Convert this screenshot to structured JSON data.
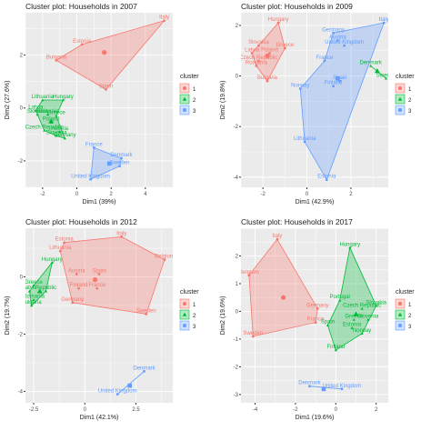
{
  "colors": {
    "1": "#F8766D",
    "2": "#00BA38",
    "3": "#619CFF",
    "panel_bg": "#EBEBEB",
    "grid": "#FFFFFF"
  },
  "chart_data": [
    {
      "type": "scatter",
      "title": "Cluster plot: Households in 2007",
      "xlabel": "Dim1 (39%)",
      "ylabel": "Dim2 (27.6%)",
      "xlim": [
        -3.0,
        5.6
      ],
      "ylim": [
        -3.0,
        3.6
      ],
      "xticks": [
        -2,
        0,
        2,
        4
      ],
      "yticks": [
        -2,
        0,
        2
      ],
      "legend": {
        "title": "cluster",
        "entries": [
          "1",
          "2",
          "3"
        ],
        "position": "right"
      },
      "points": [
        {
          "label": "Italy",
          "x": 5.1,
          "y": 3.3,
          "cluster": "1"
        },
        {
          "label": "Estonia",
          "x": 0.3,
          "y": 2.4,
          "cluster": "1"
        },
        {
          "label": "Bulgaria",
          "x": -1.2,
          "y": 1.8,
          "cluster": "1"
        },
        {
          "label": "Spain",
          "x": 1.7,
          "y": 0.7,
          "cluster": "1"
        },
        {
          "label": "Lithuania",
          "x": -2.0,
          "y": 0.3,
          "cluster": "2"
        },
        {
          "label": "Hungary",
          "x": -0.8,
          "y": 0.3,
          "cluster": "2"
        },
        {
          "label": "Latvia",
          "x": -2.4,
          "y": -0.1,
          "cluster": "2"
        },
        {
          "label": "Slovakia",
          "x": -2.3,
          "y": -0.25,
          "cluster": "2"
        },
        {
          "label": "Romania",
          "x": -1.7,
          "y": -0.25,
          "cluster": "2"
        },
        {
          "label": "Greece",
          "x": -1.2,
          "y": -0.3,
          "cluster": "2"
        },
        {
          "label": "Poland",
          "x": -1.5,
          "y": -0.55,
          "cluster": "2"
        },
        {
          "label": "Czech Republic",
          "x": -1.9,
          "y": -0.85,
          "cluster": "2"
        },
        {
          "label": "Austria",
          "x": -1.0,
          "y": -0.9,
          "cluster": "2"
        },
        {
          "label": "Slovenia",
          "x": -1.2,
          "y": -1.05,
          "cluster": "2"
        },
        {
          "label": "Germany",
          "x": -0.7,
          "y": -1.15,
          "cluster": "2"
        },
        {
          "label": "France",
          "x": 1.0,
          "y": -1.5,
          "cluster": "3"
        },
        {
          "label": "Denmark",
          "x": 2.6,
          "y": -1.9,
          "cluster": "3"
        },
        {
          "label": "Sweden",
          "x": 2.5,
          "y": -2.2,
          "cluster": "3"
        },
        {
          "label": "United Kingdom",
          "x": 0.8,
          "y": -2.7,
          "cluster": "3"
        }
      ],
      "centroids": [
        {
          "cluster": "1",
          "x": 1.6,
          "y": 2.1
        },
        {
          "cluster": "2",
          "x": -1.5,
          "y": -0.5
        },
        {
          "cluster": "3",
          "x": 1.9,
          "y": -2.1
        }
      ],
      "hulls": {
        "1": [
          "Bulgaria",
          "Estonia",
          "Italy",
          "Spain"
        ],
        "2": [
          "Latvia",
          "Lithuania",
          "Hungary",
          "Greece",
          "Germany",
          "Slovenia",
          "Czech Republic"
        ],
        "3": [
          "France",
          "Denmark",
          "Sweden",
          "United Kingdom"
        ]
      }
    },
    {
      "type": "scatter",
      "title": "Cluster plot: Households in 2009",
      "xlabel": "Dim1 (42.9%)",
      "ylabel": "Dim2 (19.8%)",
      "xlim": [
        -3.0,
        3.7
      ],
      "ylim": [
        -4.4,
        2.5
      ],
      "xticks": [
        -2,
        0,
        2
      ],
      "yticks": [
        -4,
        -2,
        0,
        2
      ],
      "legend": {
        "title": "cluster",
        "entries": [
          "1",
          "2",
          "3"
        ],
        "position": "right"
      },
      "points": [
        {
          "label": "Hungary",
          "x": -1.3,
          "y": 2.1,
          "cluster": "1"
        },
        {
          "label": "Slovakia",
          "x": -2.2,
          "y": 1.2,
          "cluster": "1"
        },
        {
          "label": "Greece",
          "x": -1.0,
          "y": 1.1,
          "cluster": "1"
        },
        {
          "label": "Latvia",
          "x": -2.5,
          "y": 0.9,
          "cluster": "1"
        },
        {
          "label": "Poland",
          "x": -1.7,
          "y": 0.9,
          "cluster": "1"
        },
        {
          "label": "Czech Republic",
          "x": -2.2,
          "y": 0.6,
          "cluster": "1"
        },
        {
          "label": "Romania",
          "x": -2.3,
          "y": 0.4,
          "cluster": "1"
        },
        {
          "label": "Bulgaria",
          "x": -1.8,
          "y": -0.2,
          "cluster": "1"
        },
        {
          "label": "Italy",
          "x": 3.5,
          "y": 2.1,
          "cluster": "3"
        },
        {
          "label": "Germany",
          "x": 1.2,
          "y": 1.7,
          "cluster": "3"
        },
        {
          "label": "Austria",
          "x": 1.4,
          "y": 1.4,
          "cluster": "3"
        },
        {
          "label": "United Kingdom",
          "x": 1.7,
          "y": 1.2,
          "cluster": "3"
        },
        {
          "label": "France",
          "x": 0.8,
          "y": 0.6,
          "cluster": "3"
        },
        {
          "label": "Spain",
          "x": 1.5,
          "y": -0.2,
          "cluster": "3"
        },
        {
          "label": "Finland",
          "x": 1.2,
          "y": -0.4,
          "cluster": "3"
        },
        {
          "label": "Norway",
          "x": -0.3,
          "y": -0.5,
          "cluster": "3"
        },
        {
          "label": "Lithuania",
          "x": -0.1,
          "y": -2.6,
          "cluster": "3"
        },
        {
          "label": "Estonia",
          "x": 0.9,
          "y": -4.1,
          "cluster": "3"
        },
        {
          "label": "Denmark",
          "x": 2.9,
          "y": 0.4,
          "cluster": "2"
        },
        {
          "label": "Sweden",
          "x": 3.6,
          "y": -0.1,
          "cluster": "2"
        }
      ],
      "centroids": [
        {
          "cluster": "1",
          "x": -1.8,
          "y": 0.8
        },
        {
          "cluster": "2",
          "x": 3.2,
          "y": 0.2
        },
        {
          "cluster": "3",
          "x": 1.4,
          "y": -0.1
        }
      ],
      "hulls": {
        "1": [
          "Hungary",
          "Greece",
          "Bulgaria",
          "Romania",
          "Latvia",
          "Slovakia"
        ],
        "2": [
          "Denmark",
          "Sweden"
        ],
        "3": [
          "Germany",
          "Italy",
          "Estonia",
          "Lithuania",
          "Norway",
          "France"
        ]
      }
    },
    {
      "type": "scatter",
      "title": "Cluster plot: Households in 2012",
      "xlabel": "Dim1 (42.1%)",
      "ylabel": "Dim2 (19.7%)",
      "xlim": [
        -2.9,
        4.3
      ],
      "ylim": [
        -4.4,
        1.7
      ],
      "xticks": [
        -2.5,
        0,
        2.5
      ],
      "yticks": [
        -4,
        -2,
        0
      ],
      "legend": {
        "title": "cluster",
        "entries": [
          "1",
          "2",
          "3"
        ],
        "position": "right"
      },
      "points": [
        {
          "label": "Italy",
          "x": 1.8,
          "y": 1.4,
          "cluster": "1"
        },
        {
          "label": "Estonia",
          "x": -1.0,
          "y": 1.2,
          "cluster": "1"
        },
        {
          "label": "Lithuania",
          "x": -1.2,
          "y": 0.9,
          "cluster": "1"
        },
        {
          "label": "Belgium",
          "x": 3.9,
          "y": 0.6,
          "cluster": "1"
        },
        {
          "label": "Austria",
          "x": -0.4,
          "y": 0.1,
          "cluster": "1"
        },
        {
          "label": "Spain",
          "x": 0.7,
          "y": 0.1,
          "cluster": "1"
        },
        {
          "label": "Finland",
          "x": -0.3,
          "y": -0.4,
          "cluster": "1"
        },
        {
          "label": "France",
          "x": 0.6,
          "y": -0.4,
          "cluster": "1"
        },
        {
          "label": "Germany",
          "x": -0.6,
          "y": -0.9,
          "cluster": "1"
        },
        {
          "label": "Sweden",
          "x": 3.0,
          "y": -1.3,
          "cluster": "1"
        },
        {
          "label": "Hungary",
          "x": -1.6,
          "y": 0.5,
          "cluster": "2"
        },
        {
          "label": "Greece",
          "x": -2.5,
          "y": -0.3,
          "cluster": "2"
        },
        {
          "label": "Latvia",
          "x": -2.7,
          "y": -0.5,
          "cluster": "2"
        },
        {
          "label": "Republic",
          "x": -1.9,
          "y": -0.5,
          "cluster": "2"
        },
        {
          "label": "Romania",
          "x": -2.5,
          "y": -0.8,
          "cluster": "2"
        },
        {
          "label": "Bulgaria",
          "x": -2.6,
          "y": -1.0,
          "cluster": "2"
        },
        {
          "label": "Denmark",
          "x": 2.9,
          "y": -3.3,
          "cluster": "3"
        },
        {
          "label": "United Kingdom",
          "x": 1.6,
          "y": -4.1,
          "cluster": "3"
        }
      ],
      "centroids": [
        {
          "cluster": "1",
          "x": 0.5,
          "y": -0.1
        },
        {
          "cluster": "2",
          "x": -2.2,
          "y": -0.5
        },
        {
          "cluster": "3",
          "x": 2.2,
          "y": -3.8
        }
      ],
      "hulls": {
        "1": [
          "Estonia",
          "Italy",
          "Belgium",
          "Sweden",
          "Germany",
          "Lithuania"
        ],
        "2": [
          "Hungary",
          "Republic",
          "Bulgaria",
          "Latvia",
          "Greece"
        ],
        "3": [
          "Denmark",
          "United Kingdom"
        ]
      }
    },
    {
      "type": "scatter",
      "title": "Cluster plot: Households in 2017",
      "xlabel": "Dim1 (19.6%)",
      "ylabel": "Dim2 (19.6%)",
      "xlim": [
        -4.7,
        2.6
      ],
      "ylim": [
        -3.3,
        3.0
      ],
      "xticks": [
        -4,
        -2,
        0,
        2
      ],
      "yticks": [
        -3,
        -2,
        -1,
        0,
        1,
        2
      ],
      "legend": {
        "title": "cluster",
        "entries": [
          "1",
          "2",
          "3"
        ],
        "position": "right"
      },
      "points": [
        {
          "label": "Italy",
          "x": -2.9,
          "y": 2.6,
          "cluster": "1"
        },
        {
          "label": "Belgium",
          "x": -4.3,
          "y": 1.3,
          "cluster": "1"
        },
        {
          "label": "Germany",
          "x": -0.9,
          "y": 0.1,
          "cluster": "1"
        },
        {
          "label": "France",
          "x": -1.0,
          "y": -0.4,
          "cluster": "1"
        },
        {
          "label": "Sweden",
          "x": -4.1,
          "y": -0.9,
          "cluster": "1"
        },
        {
          "label": "Hungary",
          "x": 0.7,
          "y": 2.3,
          "cluster": "2"
        },
        {
          "label": "Portugal",
          "x": 0.2,
          "y": 0.4,
          "cluster": "2"
        },
        {
          "label": "Czech Republic",
          "x": 1.3,
          "y": 0.1,
          "cluster": "2"
        },
        {
          "label": "Slovakia",
          "x": 2.0,
          "y": 0.2,
          "cluster": "2"
        },
        {
          "label": "Greece",
          "x": 0.9,
          "y": -0.3,
          "cluster": "2"
        },
        {
          "label": "Slovenia",
          "x": 1.6,
          "y": -0.3,
          "cluster": "2"
        },
        {
          "label": "Spain",
          "x": -0.4,
          "y": -0.5,
          "cluster": "2"
        },
        {
          "label": "Estonia",
          "x": 0.8,
          "y": -0.6,
          "cluster": "2"
        },
        {
          "label": "Norway",
          "x": 1.3,
          "y": -0.8,
          "cluster": "2"
        },
        {
          "label": "Finland",
          "x": 0.0,
          "y": -1.4,
          "cluster": "2"
        },
        {
          "label": "Denmark",
          "x": -1.3,
          "y": -2.7,
          "cluster": "3"
        },
        {
          "label": "United Kingdom",
          "x": 0.3,
          "y": -2.8,
          "cluster": "3"
        }
      ],
      "centroids": [
        {
          "cluster": "1",
          "x": -2.6,
          "y": 0.5
        },
        {
          "cluster": "2",
          "x": 1.0,
          "y": -0.1
        },
        {
          "cluster": "3",
          "x": -0.6,
          "y": -2.8
        }
      ],
      "hulls": {
        "1": [
          "Italy",
          "Germany",
          "France",
          "Sweden",
          "Belgium"
        ],
        "2": [
          "Hungary",
          "Slovakia",
          "Norway",
          "Finland",
          "Spain",
          "Portugal"
        ],
        "3": [
          "Denmark",
          "United Kingdom"
        ]
      }
    }
  ]
}
